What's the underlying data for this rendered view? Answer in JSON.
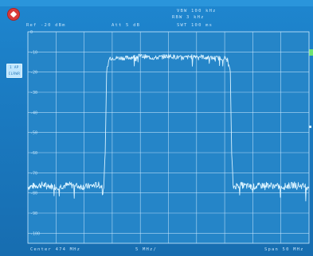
{
  "header": {
    "vbw": "VBW 100 kHz",
    "rbw": "RBW 3 kHz",
    "ref": "Ref -20 dBm",
    "att": "Att 5 dB",
    "swt": "SWT 100 ms"
  },
  "marker_box": {
    "line1": "1 AP",
    "line2": "CLRWR"
  },
  "footer": {
    "center": "Center 474 MHz",
    "scale": "5 MHz/",
    "span": "Span 50 MHz"
  },
  "chart_data": {
    "type": "line",
    "title": "",
    "xlabel": "",
    "ylabel": "",
    "y_tick_labels": [
      "0",
      "-10",
      "-20",
      "-30",
      "-40",
      "-50",
      "-60",
      "-70",
      "-80",
      "-90",
      "-100"
    ],
    "ylim": [
      -105,
      0
    ],
    "xlim": [
      0,
      10
    ],
    "grid": true,
    "series": [
      {
        "x": [
          0.0,
          0.5,
          1.0,
          1.5,
          2.0,
          2.5,
          2.7,
          2.75,
          2.8,
          2.9,
          3.0,
          3.5,
          4.0,
          4.5,
          5.0,
          5.5,
          6.0,
          6.5,
          7.0,
          7.1,
          7.2,
          7.25,
          7.3,
          7.5,
          8.0,
          8.5,
          9.0,
          9.5,
          10.0
        ],
        "y": [
          -77,
          -76,
          -77,
          -76,
          -77,
          -76,
          -77,
          -60,
          -20,
          -13,
          -13,
          -13,
          -12,
          -13,
          -12,
          -13,
          -12,
          -13,
          -13,
          -14,
          -20,
          -60,
          -77,
          -76,
          -77,
          -76,
          -77,
          -76,
          -77
        ]
      }
    ],
    "colors": {
      "trace": "#d8f2ff",
      "grid": "#cfeaff",
      "plot_bg": "#2585c8"
    }
  }
}
